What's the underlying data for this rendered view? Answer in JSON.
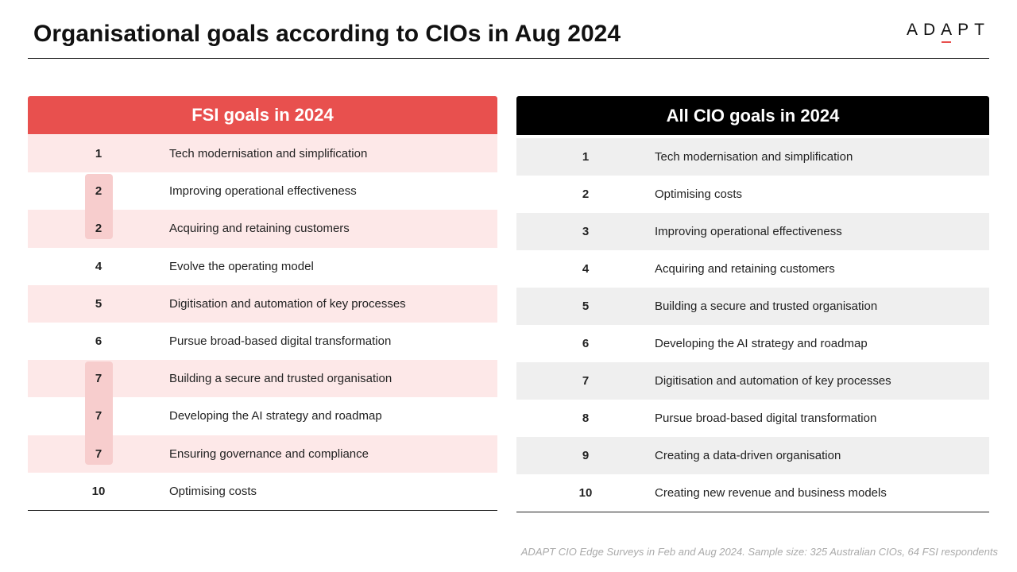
{
  "title": "Organisational goals according to CIOs in Aug 2024",
  "logo": {
    "text_pre": "AD",
    "text_mark": "A",
    "text_post": "PT"
  },
  "fsi": {
    "header": "FSI goals in 2024",
    "rows": [
      {
        "rank": "1",
        "goal": "Tech modernisation and simplification"
      },
      {
        "rank": "2",
        "goal": "Improving operational effectiveness"
      },
      {
        "rank": "2",
        "goal": "Acquiring and retaining customers"
      },
      {
        "rank": "4",
        "goal": "Evolve the operating model"
      },
      {
        "rank": "5",
        "goal": "Digitisation and automation of key processes"
      },
      {
        "rank": "6",
        "goal": "Pursue broad-based digital transformation"
      },
      {
        "rank": "7",
        "goal": "Building a secure and trusted organisation"
      },
      {
        "rank": "7",
        "goal": "Developing the AI strategy and roadmap"
      },
      {
        "rank": "7",
        "goal": "Ensuring governance and compliance"
      },
      {
        "rank": "10",
        "goal": "Optimising costs"
      }
    ]
  },
  "all_cio": {
    "header": "All CIO goals in 2024",
    "rows": [
      {
        "rank": "1",
        "goal": "Tech modernisation and simplification"
      },
      {
        "rank": "2",
        "goal": "Optimising costs"
      },
      {
        "rank": "3",
        "goal": "Improving operational effectiveness"
      },
      {
        "rank": "4",
        "goal": "Acquiring and retaining customers"
      },
      {
        "rank": "5",
        "goal": "Building a secure and trusted organisation"
      },
      {
        "rank": "6",
        "goal": "Developing the AI strategy and roadmap"
      },
      {
        "rank": "7",
        "goal": "Digitisation and automation of key processes"
      },
      {
        "rank": "8",
        "goal": "Pursue broad-based digital transformation"
      },
      {
        "rank": "9",
        "goal": "Creating a data-driven organisation"
      },
      {
        "rank": "10",
        "goal": "Creating new revenue and business models"
      }
    ]
  },
  "source": "ADAPT CIO Edge Surveys in Feb and Aug 2024. Sample size: 325 Australian CIOs, 64 FSI respondents",
  "colors": {
    "fsi_accent": "#e8504e",
    "fsi_row": "#fde8e8",
    "tie_highlight": "#f7cdcd",
    "all_header": "#000000",
    "all_row": "#efefef"
  }
}
